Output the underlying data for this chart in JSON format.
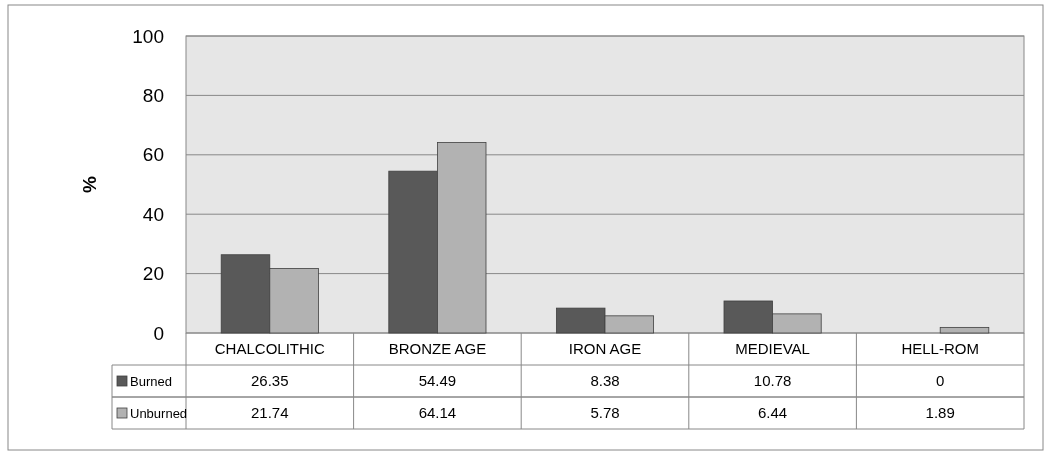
{
  "chart_data": {
    "type": "bar",
    "ylabel": "%",
    "categories": [
      "CHALCOLITHIC",
      "BRONZE AGE",
      "IRON AGE",
      "MEDIEVAL",
      "HELL-ROM"
    ],
    "series": [
      {
        "name": "Burned",
        "color": "#595959",
        "values": [
          26.35,
          54.49,
          8.38,
          10.78,
          0
        ]
      },
      {
        "name": "Unburned",
        "color": "#b2b2b2",
        "values": [
          21.74,
          64.14,
          5.78,
          6.44,
          1.89
        ]
      }
    ],
    "ylim": [
      0,
      100
    ],
    "yticks": [
      0,
      20,
      40,
      60,
      80,
      100
    ],
    "grid": "y",
    "legend": "bottom",
    "data_labels": true
  }
}
